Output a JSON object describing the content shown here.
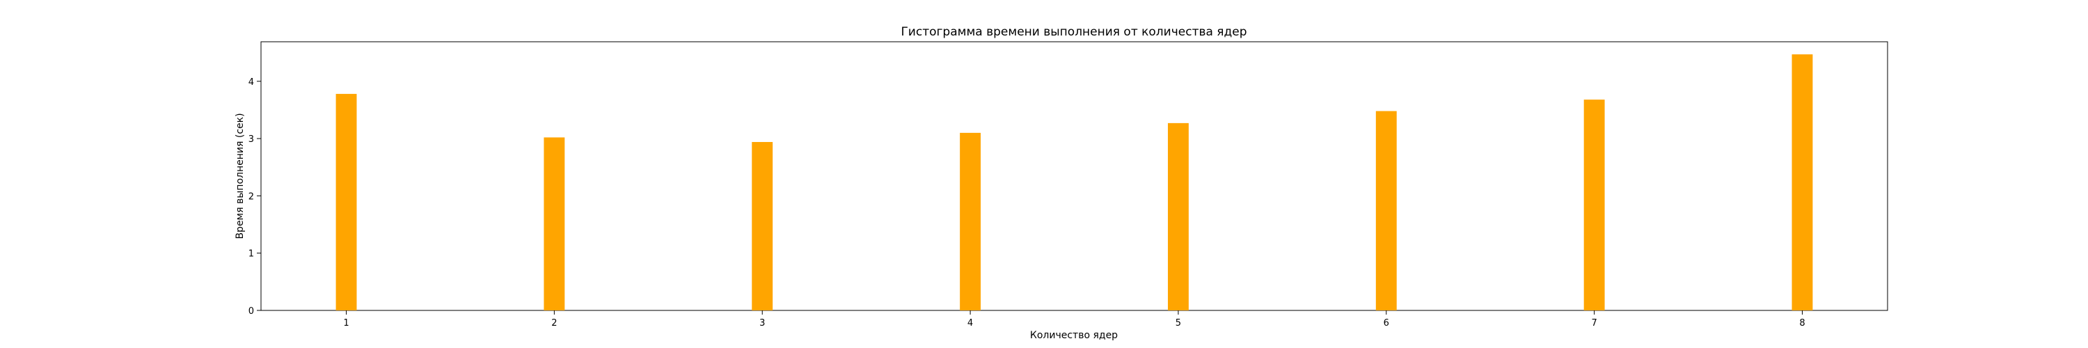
{
  "chart_data": {
    "type": "bar",
    "title": "Гистограмма времени выполнения от количества ядер",
    "xlabel": "Количество ядер",
    "ylabel": "Время выполнения (сек)",
    "x": [
      1,
      2,
      3,
      4,
      5,
      6,
      7,
      8
    ],
    "values": [
      3.78,
      3.02,
      2.94,
      3.1,
      3.27,
      3.48,
      3.68,
      4.47
    ],
    "xlim": [
      0.59,
      8.41
    ],
    "ylim": [
      0,
      4.69
    ],
    "xticks": [
      1,
      2,
      3,
      4,
      5,
      6,
      7,
      8
    ],
    "yticks": [
      0,
      1,
      2,
      3,
      4
    ],
    "bar_width": 0.1,
    "bar_color": "#ffa500",
    "grid": false,
    "legend": "none"
  }
}
